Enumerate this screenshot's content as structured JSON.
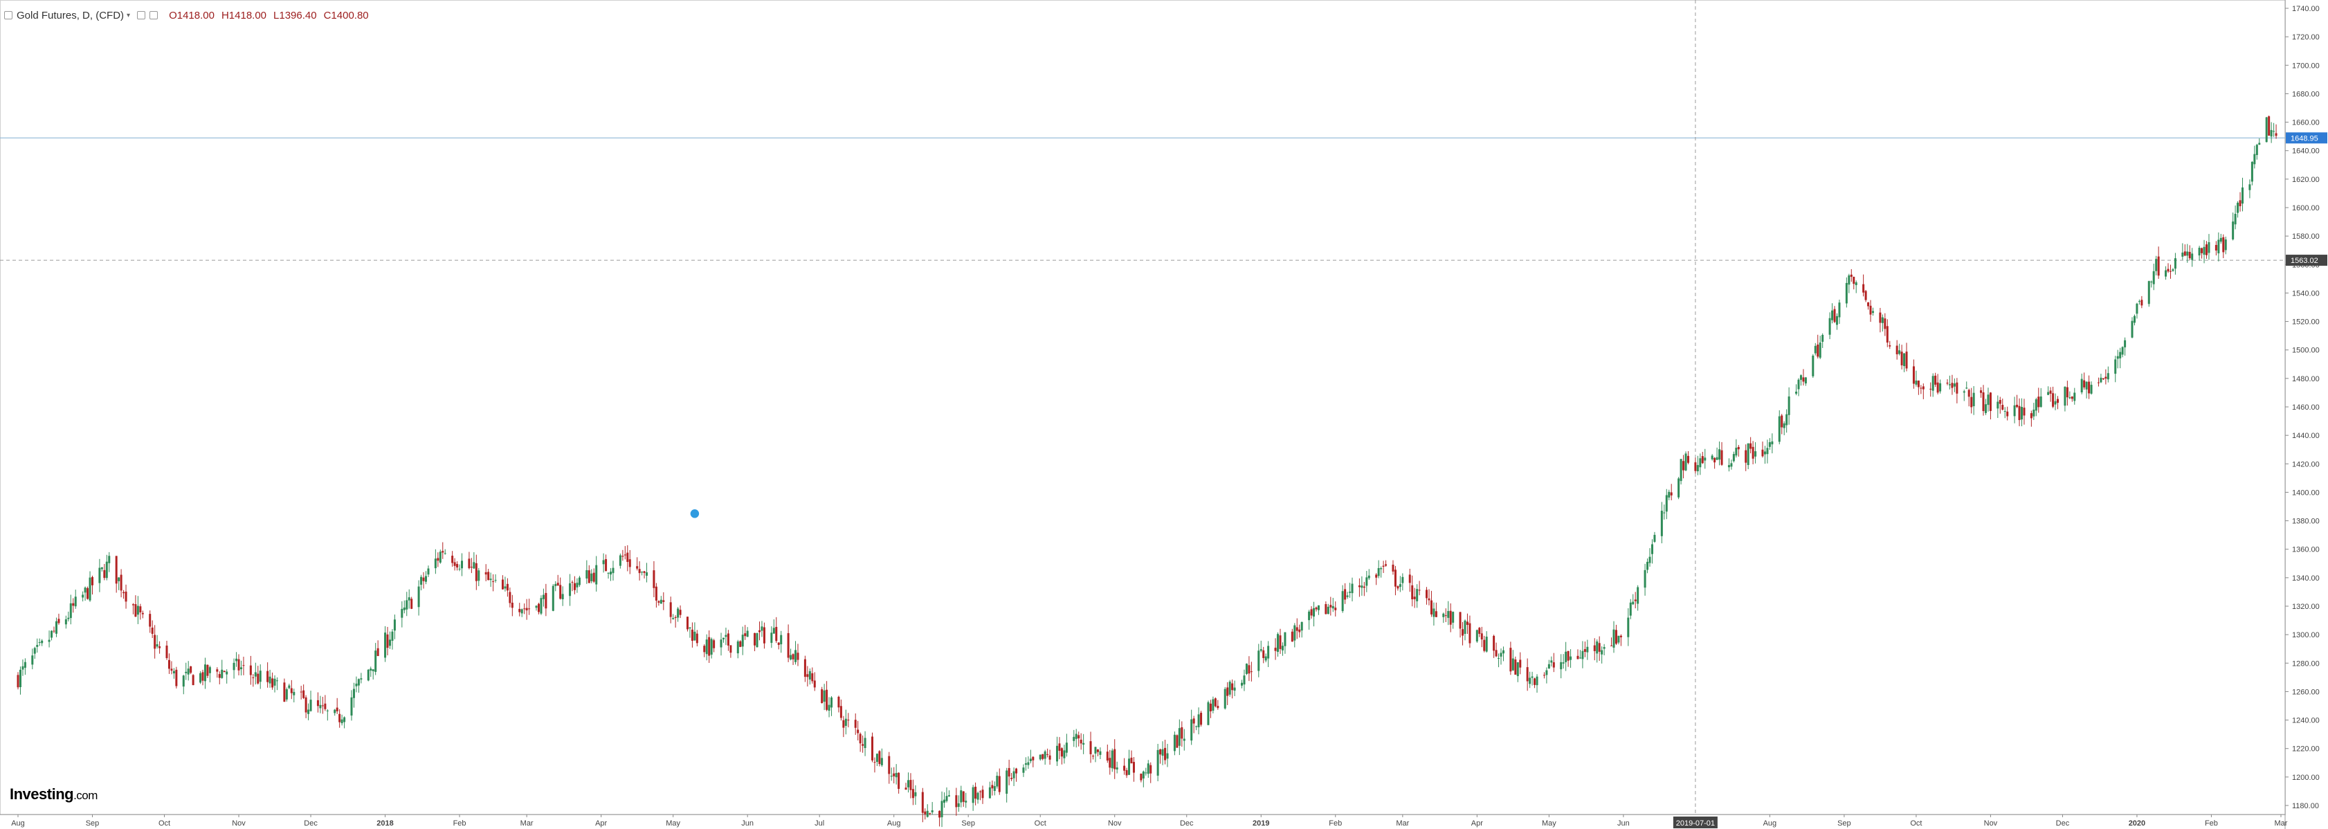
{
  "legend": {
    "title": "Gold Futures, D, (CFD)",
    "open": "O1418.00",
    "high": "H1418.00",
    "low": "L1396.40",
    "close": "C1400.80"
  },
  "brand": {
    "name": "Investing",
    "suffix": ".com"
  },
  "colors": {
    "up": "#2e8b57",
    "down": "#b22222",
    "grid": "#e6e6e6",
    "last_price_line": "#8fb8d6",
    "last_price_badge": "#2f7bd4",
    "crosshair_badge": "#444444"
  },
  "chart_data": {
    "type": "candlestick",
    "title": "Gold Futures, D, (CFD)",
    "y_axis": {
      "min": 1180,
      "max": 1740,
      "step": 20,
      "position": "right"
    },
    "x_axis_labels": [
      {
        "date": "2017-08-01",
        "label": "Aug"
      },
      {
        "date": "2017-09-01",
        "label": "Sep"
      },
      {
        "date": "2017-10-01",
        "label": "Oct"
      },
      {
        "date": "2017-11-01",
        "label": "Nov"
      },
      {
        "date": "2017-12-01",
        "label": "Dec"
      },
      {
        "date": "2018-01-01",
        "label": "2018"
      },
      {
        "date": "2018-02-01",
        "label": "Feb"
      },
      {
        "date": "2018-03-01",
        "label": "Mar"
      },
      {
        "date": "2018-04-01",
        "label": "Apr"
      },
      {
        "date": "2018-05-01",
        "label": "May"
      },
      {
        "date": "2018-06-01",
        "label": "Jun"
      },
      {
        "date": "2018-07-01",
        "label": "Jul"
      },
      {
        "date": "2018-08-01",
        "label": "Aug"
      },
      {
        "date": "2018-09-01",
        "label": "Sep"
      },
      {
        "date": "2018-10-01",
        "label": "Oct"
      },
      {
        "date": "2018-11-01",
        "label": "Nov"
      },
      {
        "date": "2018-12-01",
        "label": "Dec"
      },
      {
        "date": "2019-01-01",
        "label": "2019"
      },
      {
        "date": "2019-02-01",
        "label": "Feb"
      },
      {
        "date": "2019-03-01",
        "label": "Mar"
      },
      {
        "date": "2019-04-01",
        "label": "Apr"
      },
      {
        "date": "2019-05-01",
        "label": "May"
      },
      {
        "date": "2019-06-01",
        "label": "Jun"
      },
      {
        "date": "2019-08-01",
        "label": "Aug"
      },
      {
        "date": "2019-09-01",
        "label": "Sep"
      },
      {
        "date": "2019-10-01",
        "label": "Oct"
      },
      {
        "date": "2019-11-01",
        "label": "Nov"
      },
      {
        "date": "2019-12-01",
        "label": "Dec"
      },
      {
        "date": "2020-01-01",
        "label": "2020"
      },
      {
        "date": "2020-02-01",
        "label": "Feb"
      },
      {
        "date": "2020-03-01",
        "label": "Mar"
      }
    ],
    "x_range": [
      "2017-08-01",
      "2020-03-01"
    ],
    "crosshair": {
      "date": "2019-07-01",
      "date_label": "2019-07-01",
      "price": 1563.02,
      "price_label": "1563.02"
    },
    "last_price": {
      "value": 1648.95,
      "label": "1648.95"
    },
    "events": [
      {
        "date": "2018-05-10",
        "price": 1385,
        "type": "marker"
      }
    ],
    "series_anchors": [
      {
        "date": "2017-08-01",
        "close": 1270
      },
      {
        "date": "2017-09-08",
        "close": 1350
      },
      {
        "date": "2017-10-06",
        "close": 1268
      },
      {
        "date": "2017-11-01",
        "close": 1277
      },
      {
        "date": "2017-12-12",
        "close": 1240
      },
      {
        "date": "2018-01-25",
        "close": 1360
      },
      {
        "date": "2018-03-01",
        "close": 1318
      },
      {
        "date": "2018-04-11",
        "close": 1355
      },
      {
        "date": "2018-05-15",
        "close": 1290
      },
      {
        "date": "2018-06-13",
        "close": 1302
      },
      {
        "date": "2018-07-03",
        "close": 1255
      },
      {
        "date": "2018-08-16",
        "close": 1175
      },
      {
        "date": "2018-09-14",
        "close": 1195
      },
      {
        "date": "2018-10-16",
        "close": 1225
      },
      {
        "date": "2018-11-13",
        "close": 1202
      },
      {
        "date": "2018-12-31",
        "close": 1284
      },
      {
        "date": "2019-02-20",
        "close": 1346
      },
      {
        "date": "2019-04-23",
        "close": 1270
      },
      {
        "date": "2019-05-31",
        "close": 1300
      },
      {
        "date": "2019-06-25",
        "close": 1420
      },
      {
        "date": "2019-07-31",
        "close": 1430
      },
      {
        "date": "2019-09-04",
        "close": 1550
      },
      {
        "date": "2019-10-01",
        "close": 1480
      },
      {
        "date": "2019-11-12",
        "close": 1455
      },
      {
        "date": "2019-12-20",
        "close": 1480
      },
      {
        "date": "2020-01-08",
        "close": 1558
      },
      {
        "date": "2020-02-07",
        "close": 1573
      },
      {
        "date": "2020-02-24",
        "close": 1658
      },
      {
        "date": "2020-02-28",
        "close": 1648.95
      }
    ]
  }
}
